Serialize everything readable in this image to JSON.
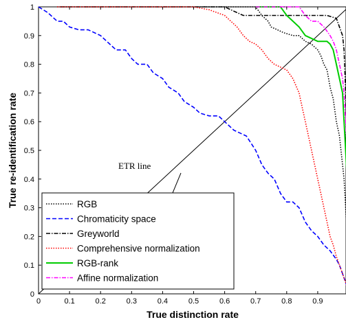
{
  "chart_data": {
    "type": "line",
    "xlabel": "True distinction rate",
    "ylabel": "True re-identification rate",
    "xlim": [
      0,
      1
    ],
    "ylim": [
      0,
      1
    ],
    "xticks": [
      "0",
      "0.1",
      "0.2",
      "0.3",
      "0.4",
      "0.5",
      "0.6",
      "0.7",
      "0.8",
      "0.9"
    ],
    "yticks": [
      "0",
      "0.1",
      "0.2",
      "0.3",
      "0.4",
      "0.5",
      "0.6",
      "0.7",
      "0.8",
      "0.9",
      "1"
    ],
    "grid": false,
    "legend_position": "bottom-left",
    "annotations": [
      {
        "text": "ETR line",
        "x": 0.39,
        "y": 0.5
      }
    ],
    "reference_line": {
      "x": [
        0,
        1
      ],
      "y": [
        0,
        1
      ]
    },
    "series": [
      {
        "name": "RGB",
        "color": "#000000",
        "dash": "dotted",
        "x": [
          0.06,
          0.7,
          0.72,
          0.74,
          0.75,
          0.77,
          0.79,
          0.82,
          0.84,
          0.86,
          0.88,
          0.9,
          0.91,
          0.92,
          0.93,
          0.935,
          0.94,
          0.95,
          0.96,
          0.97,
          0.975,
          0.98,
          0.985,
          0.99,
          0.995,
          1.0
        ],
        "y": [
          1.0,
          1.0,
          0.97,
          0.95,
          0.93,
          0.92,
          0.91,
          0.9,
          0.9,
          0.88,
          0.87,
          0.85,
          0.83,
          0.8,
          0.78,
          0.75,
          0.72,
          0.68,
          0.6,
          0.55,
          0.5,
          0.45,
          0.4,
          0.3,
          0.2,
          0.0
        ]
      },
      {
        "name": "Chromaticity space",
        "color": "#0000ff",
        "dash": "dashed",
        "x": [
          0.0,
          0.03,
          0.06,
          0.08,
          0.1,
          0.13,
          0.16,
          0.2,
          0.22,
          0.25,
          0.28,
          0.3,
          0.32,
          0.35,
          0.37,
          0.4,
          0.42,
          0.45,
          0.47,
          0.5,
          0.52,
          0.55,
          0.58,
          0.6,
          0.63,
          0.67,
          0.7,
          0.72,
          0.74,
          0.76,
          0.78,
          0.8,
          0.82,
          0.84,
          0.86,
          0.88,
          0.9,
          0.92,
          0.94,
          0.96,
          0.97,
          0.98,
          0.99,
          1.0
        ],
        "y": [
          1.0,
          0.98,
          0.95,
          0.95,
          0.93,
          0.92,
          0.92,
          0.9,
          0.88,
          0.85,
          0.85,
          0.82,
          0.8,
          0.8,
          0.77,
          0.75,
          0.72,
          0.7,
          0.67,
          0.65,
          0.63,
          0.62,
          0.62,
          0.6,
          0.57,
          0.55,
          0.5,
          0.45,
          0.42,
          0.4,
          0.35,
          0.32,
          0.32,
          0.3,
          0.25,
          0.22,
          0.2,
          0.17,
          0.15,
          0.12,
          0.1,
          0.07,
          0.04,
          0.0
        ]
      },
      {
        "name": "Greyworld",
        "color": "#000000",
        "dash": "dashdot",
        "x": [
          0.07,
          0.6,
          0.62,
          0.64,
          0.66,
          0.68,
          0.72,
          0.76,
          0.8,
          0.84,
          0.9,
          0.93,
          0.96,
          0.97,
          0.98,
          0.985,
          0.99,
          0.995,
          1.0
        ],
        "y": [
          1.0,
          1.0,
          0.99,
          0.98,
          0.97,
          0.97,
          0.97,
          0.97,
          0.97,
          0.97,
          0.97,
          0.97,
          0.96,
          0.93,
          0.9,
          0.85,
          0.7,
          0.5,
          0.0
        ]
      },
      {
        "name": "Comprehensive normalization",
        "color": "#ff0000",
        "dash": "dotted",
        "x": [
          0.06,
          0.5,
          0.55,
          0.6,
          0.62,
          0.64,
          0.66,
          0.68,
          0.7,
          0.72,
          0.74,
          0.76,
          0.78,
          0.8,
          0.82,
          0.84,
          0.85,
          0.86,
          0.87,
          0.88,
          0.89,
          0.9,
          0.91,
          0.92,
          0.93,
          0.94,
          0.95,
          0.96,
          0.97,
          0.98,
          0.99,
          1.0
        ],
        "y": [
          1.0,
          1.0,
          0.99,
          0.97,
          0.95,
          0.93,
          0.9,
          0.88,
          0.87,
          0.85,
          0.82,
          0.8,
          0.79,
          0.78,
          0.75,
          0.7,
          0.65,
          0.6,
          0.55,
          0.5,
          0.45,
          0.4,
          0.35,
          0.3,
          0.25,
          0.2,
          0.17,
          0.13,
          0.1,
          0.07,
          0.04,
          0.0
        ]
      },
      {
        "name": "RGB-rank",
        "color": "#00cc00",
        "dash": "solid",
        "x": [
          0.7,
          0.78,
          0.8,
          0.82,
          0.84,
          0.86,
          0.9,
          0.93,
          0.94,
          0.95,
          0.96,
          0.97,
          0.98,
          0.985,
          0.99,
          0.995,
          1.0
        ],
        "y": [
          1.0,
          1.0,
          0.97,
          0.95,
          0.93,
          0.9,
          0.88,
          0.88,
          0.87,
          0.85,
          0.8,
          0.75,
          0.7,
          0.6,
          0.5,
          0.4,
          0.3
        ]
      },
      {
        "name": "Affine normalization",
        "color": "#ff00ff",
        "dash": "dashdot",
        "x": [
          0.7,
          0.84,
          0.86,
          0.88,
          0.9,
          0.92,
          0.94,
          0.95,
          0.96,
          0.97,
          0.98,
          0.985,
          0.99,
          0.995,
          1.0
        ],
        "y": [
          1.0,
          1.0,
          0.97,
          0.95,
          0.95,
          0.93,
          0.9,
          0.88,
          0.85,
          0.8,
          0.75,
          0.7,
          0.6,
          0.5,
          0.4
        ]
      }
    ]
  }
}
